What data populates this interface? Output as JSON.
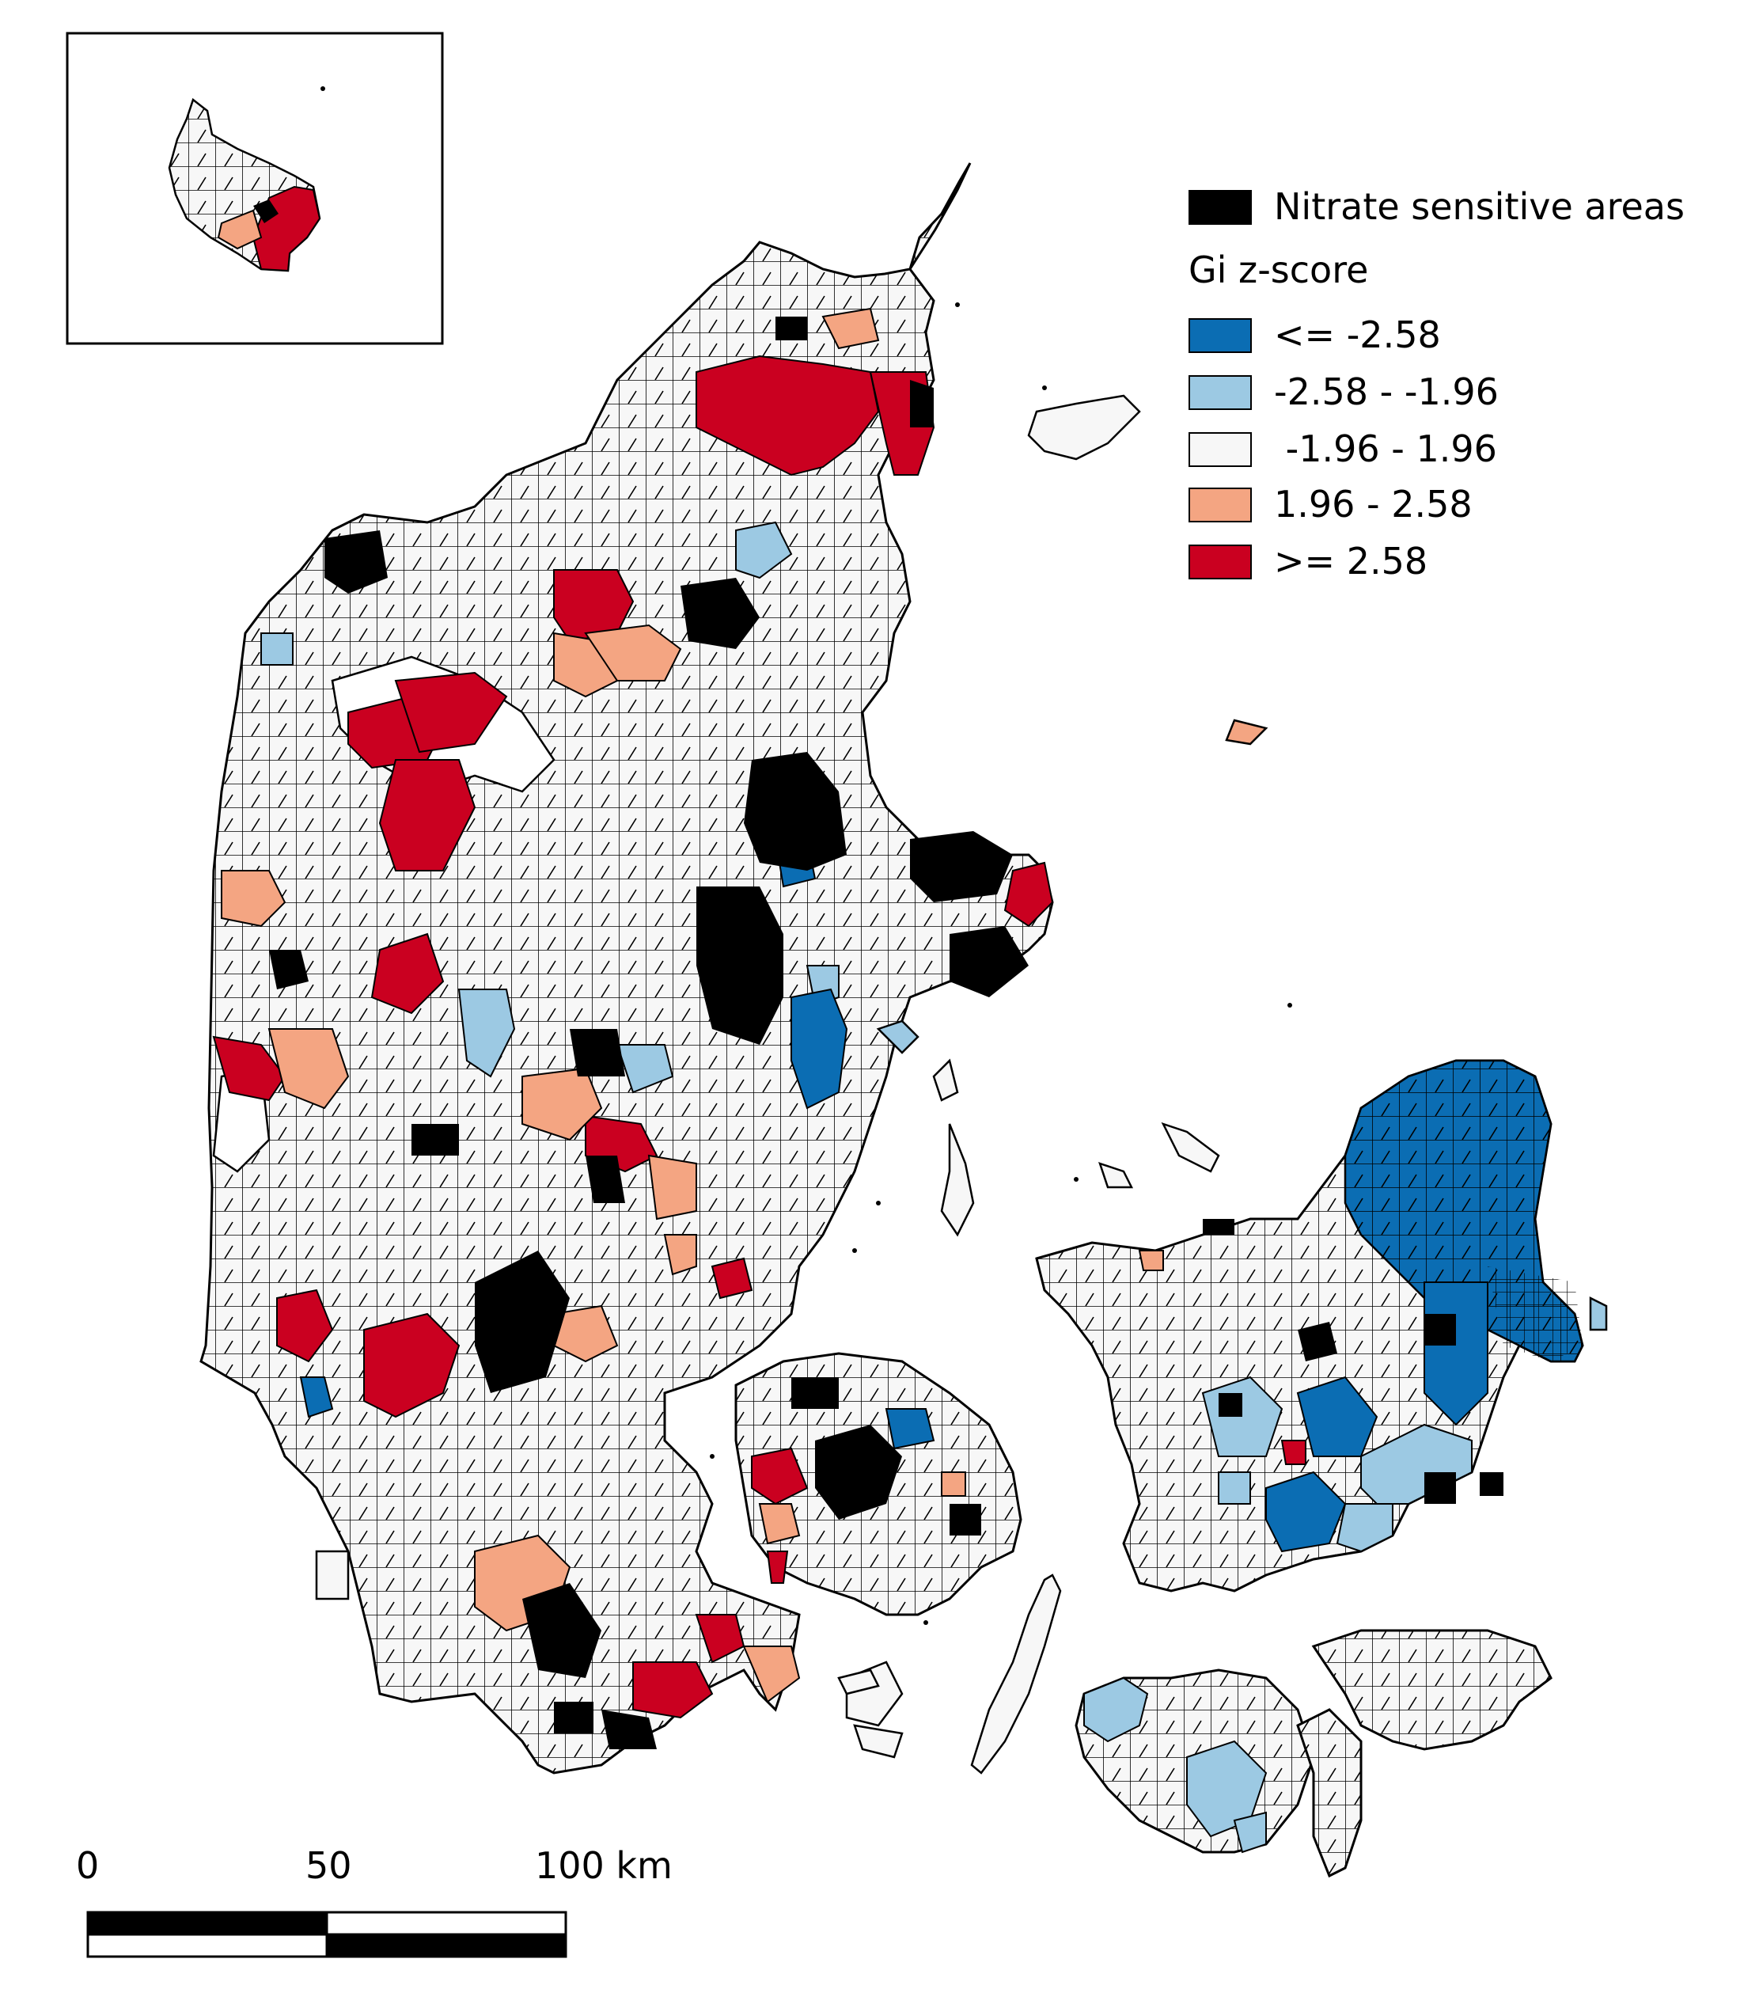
{
  "legend": {
    "nitrate_label": "Nitrate sensitive areas",
    "nitrate_color": "#000000",
    "gi_title": "Gi z-score",
    "classes": [
      {
        "label": "<= -2.58",
        "color": "#0b6db3"
      },
      {
        "label": "-2.58 - -1.96",
        "color": "#9cc9e3"
      },
      {
        "label": " -1.96 - 1.96",
        "color": "#f7f7f7"
      },
      {
        "label": "1.96 - 2.58",
        "color": "#f4a582"
      },
      {
        "label": ">= 2.58",
        "color": "#ca0020"
      }
    ]
  },
  "scale_bar": {
    "labels": [
      "0",
      "50",
      "100 km"
    ]
  },
  "map_colors": {
    "land": "#f7f7f7",
    "outline": "#000000"
  }
}
